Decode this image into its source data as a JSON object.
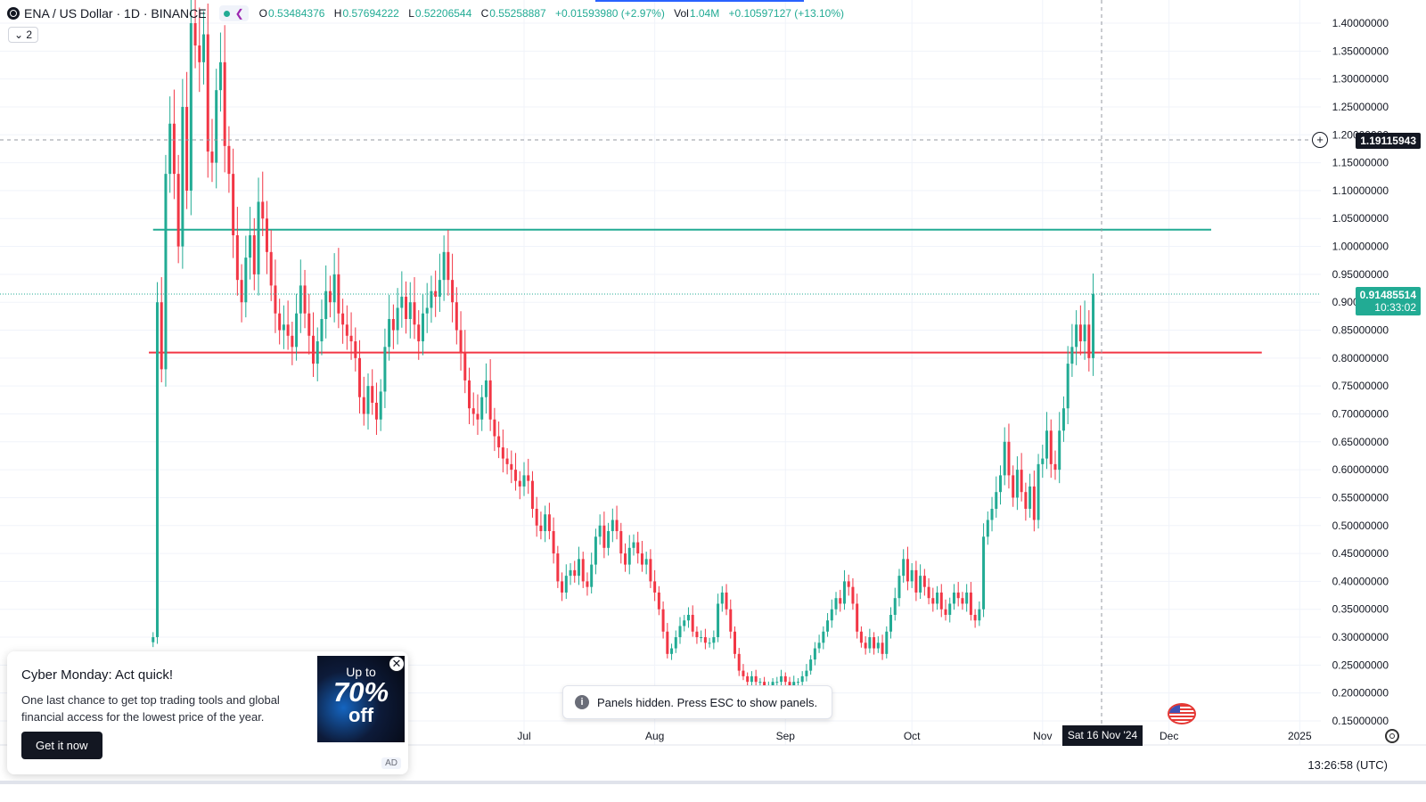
{
  "legend": {
    "title": "ENA / US Dollar · 1D · BINANCE",
    "o_key": "O",
    "o": "0.53484376",
    "h_key": "H",
    "h": "0.57694222",
    "l_key": "L",
    "l": "0.52206544",
    "c_key": "C",
    "c": "0.55258887",
    "change": "+0.01593980 (+2.97%)",
    "vol_key": "Vol",
    "vol": "1.04M",
    "vol_change": "+0.10597127 (+13.10%)",
    "collapse": "⌄ 2"
  },
  "crosshair_price": "1.19115943",
  "last_price": "0.91485514",
  "countdown": "10:33:02",
  "crosshair_date": "Sat 16 Nov '24",
  "clock": "13:26:58 (UTC)",
  "toast": "Panels hidden. Press ESC to show panels.",
  "ad": {
    "heading": "Cyber Monday: Act quick!",
    "body": "One last chance to get top trading tools and global financial access for the lowest price of the year.",
    "cta": "Get it now",
    "promo_up": "Up to",
    "promo_pct": "70%",
    "promo_off": "off",
    "badge": "AD"
  },
  "colors": {
    "up": "#22ab94",
    "down": "#f23645",
    "resistance": "#22ab94",
    "support": "#f23645"
  },
  "chart_data": {
    "type": "candlestick",
    "symbol": "ENA / US Dollar · 1D · BINANCE",
    "ylim": [
      0.15,
      1.4
    ],
    "y_ticks": [
      "1.40000000",
      "1.35000000",
      "1.30000000",
      "1.25000000",
      "1.20000000",
      "1.15000000",
      "1.10000000",
      "1.05000000",
      "1.00000000",
      "0.95000000",
      "0.90000000",
      "0.85000000",
      "0.80000000",
      "0.75000000",
      "0.70000000",
      "0.65000000",
      "0.60000000",
      "0.55000000",
      "0.50000000",
      "0.45000000",
      "0.40000000",
      "0.35000000",
      "0.30000000",
      "0.25000000",
      "0.20000000",
      "0.15000000"
    ],
    "x_ticks": [
      "Jul",
      "Aug",
      "Sep",
      "Oct",
      "Nov",
      "Dec",
      "2025"
    ],
    "x_tick_days": [
      122,
      153,
      184,
      214,
      245,
      275,
      306
    ],
    "first_candle_day": 34,
    "horizontal_lines": [
      {
        "price": 1.03,
        "color": "#22ab94",
        "from_day": 34,
        "to_day": 285
      },
      {
        "price": 0.81,
        "color": "#f23645",
        "from_day": 33,
        "to_day": 297
      }
    ],
    "closes": [
      0.3,
      0.9,
      0.78,
      1.13,
      1.22,
      1.13,
      1.0,
      1.25,
      1.1,
      1.4,
      1.36,
      1.33,
      1.38,
      1.17,
      1.15,
      1.28,
      1.33,
      1.18,
      1.13,
      1.02,
      0.94,
      0.9,
      0.98,
      1.02,
      0.95,
      1.08,
      1.05,
      0.99,
      0.93,
      0.88,
      0.85,
      0.86,
      0.84,
      0.82,
      0.88,
      0.93,
      0.88,
      0.84,
      0.79,
      0.83,
      0.87,
      0.92,
      0.9,
      0.95,
      0.88,
      0.86,
      0.84,
      0.83,
      0.8,
      0.73,
      0.7,
      0.75,
      0.72,
      0.69,
      0.74,
      0.82,
      0.87,
      0.85,
      0.89,
      0.91,
      0.87,
      0.9,
      0.86,
      0.83,
      0.88,
      0.89,
      0.92,
      0.91,
      0.94,
      0.99,
      0.94,
      0.9,
      0.85,
      0.81,
      0.76,
      0.71,
      0.7,
      0.69,
      0.73,
      0.76,
      0.69,
      0.66,
      0.64,
      0.62,
      0.61,
      0.6,
      0.58,
      0.57,
      0.59,
      0.58,
      0.53,
      0.5,
      0.49,
      0.52,
      0.49,
      0.45,
      0.4,
      0.38,
      0.41,
      0.42,
      0.41,
      0.44,
      0.4,
      0.39,
      0.43,
      0.48,
      0.5,
      0.46,
      0.49,
      0.51,
      0.49,
      0.45,
      0.43,
      0.46,
      0.47,
      0.45,
      0.43,
      0.44,
      0.4,
      0.38,
      0.35,
      0.31,
      0.27,
      0.28,
      0.3,
      0.32,
      0.33,
      0.34,
      0.31,
      0.3,
      0.3,
      0.29,
      0.29,
      0.3,
      0.36,
      0.38,
      0.35,
      0.31,
      0.27,
      0.24,
      0.23,
      0.22,
      0.23,
      0.22,
      0.22,
      0.21,
      0.21,
      0.22,
      0.22,
      0.23,
      0.22,
      0.21,
      0.22,
      0.22,
      0.23,
      0.24,
      0.26,
      0.28,
      0.29,
      0.31,
      0.33,
      0.35,
      0.37,
      0.36,
      0.4,
      0.39,
      0.36,
      0.31,
      0.29,
      0.28,
      0.3,
      0.28,
      0.29,
      0.27,
      0.31,
      0.34,
      0.37,
      0.41,
      0.44,
      0.4,
      0.42,
      0.38,
      0.41,
      0.39,
      0.37,
      0.36,
      0.38,
      0.35,
      0.34,
      0.36,
      0.38,
      0.37,
      0.36,
      0.38,
      0.34,
      0.33,
      0.35,
      0.48,
      0.51,
      0.53,
      0.56,
      0.59,
      0.65,
      0.59,
      0.55,
      0.6,
      0.56,
      0.53,
      0.57,
      0.51,
      0.61,
      0.62,
      0.67,
      0.61,
      0.6,
      0.67,
      0.71,
      0.79,
      0.82,
      0.86,
      0.83,
      0.86,
      0.8,
      0.915
    ]
  }
}
